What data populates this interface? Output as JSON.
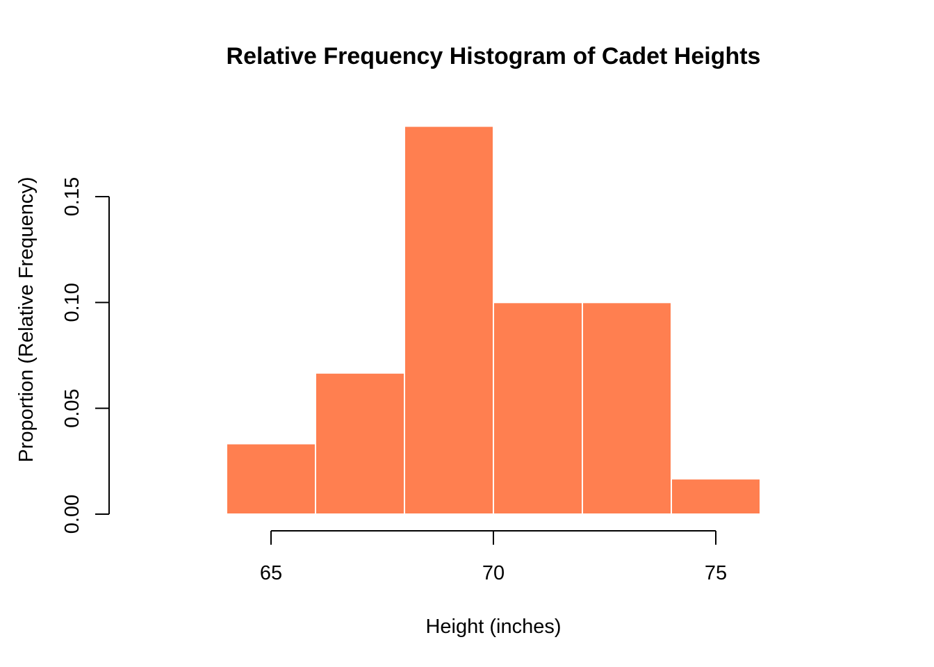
{
  "chart_data": {
    "type": "bar",
    "title": "Relative Frequency Histogram of Cadet Heights",
    "xlabel": "Height (inches)",
    "ylabel": "Proportion (Relative Frequency)",
    "bins": [
      {
        "start": 64,
        "end": 66,
        "value": 0.0333
      },
      {
        "start": 66,
        "end": 68,
        "value": 0.0667
      },
      {
        "start": 68,
        "end": 70,
        "value": 0.1833
      },
      {
        "start": 70,
        "end": 72,
        "value": 0.1
      },
      {
        "start": 72,
        "end": 74,
        "value": 0.1
      },
      {
        "start": 74,
        "end": 76,
        "value": 0.0167
      }
    ],
    "xticks": [
      65,
      70,
      75
    ],
    "xtick_labels": [
      "65",
      "70",
      "75"
    ],
    "yticks": [
      0,
      0.05,
      0.1,
      0.15
    ],
    "ytick_labels": [
      "0.00",
      "0.05",
      "0.10",
      "0.15"
    ],
    "xlim": [
      63,
      77
    ],
    "ylim": [
      0,
      0.1833
    ],
    "bar_color": "#FF7F50",
    "bar_border_color": "#FFFFFF",
    "grid": false,
    "legend": "none"
  }
}
